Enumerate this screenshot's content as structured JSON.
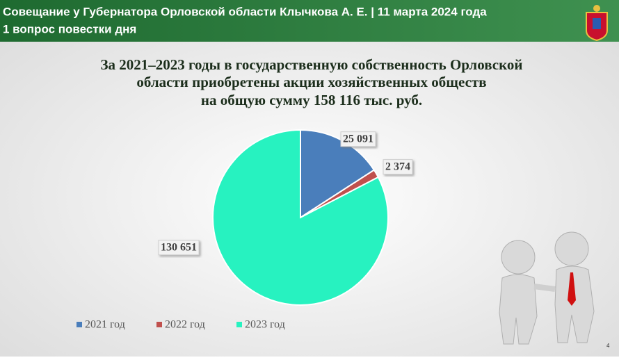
{
  "header": {
    "line1": "Совещание у Губернатора Орловской области Клычкова А. Е. | 11 марта 2024 года",
    "line2": "1 вопрос повестки дня"
  },
  "chart_data": {
    "type": "pie",
    "title": [
      "За 2021–2023 годы в государственную собственность Орловской",
      "области приобретены акции хозяйственных обществ",
      "на общую сумму 158 116 тыс. руб."
    ],
    "categories": [
      "2021 год",
      "2022 год",
      "2023 год"
    ],
    "values": [
      25091,
      2374,
      130651
    ],
    "value_labels": [
      "25 091",
      "2 374",
      "130 651"
    ],
    "colors": [
      "#4a7ebb",
      "#c0504d",
      "#27f2c0"
    ]
  },
  "page_number": "4"
}
